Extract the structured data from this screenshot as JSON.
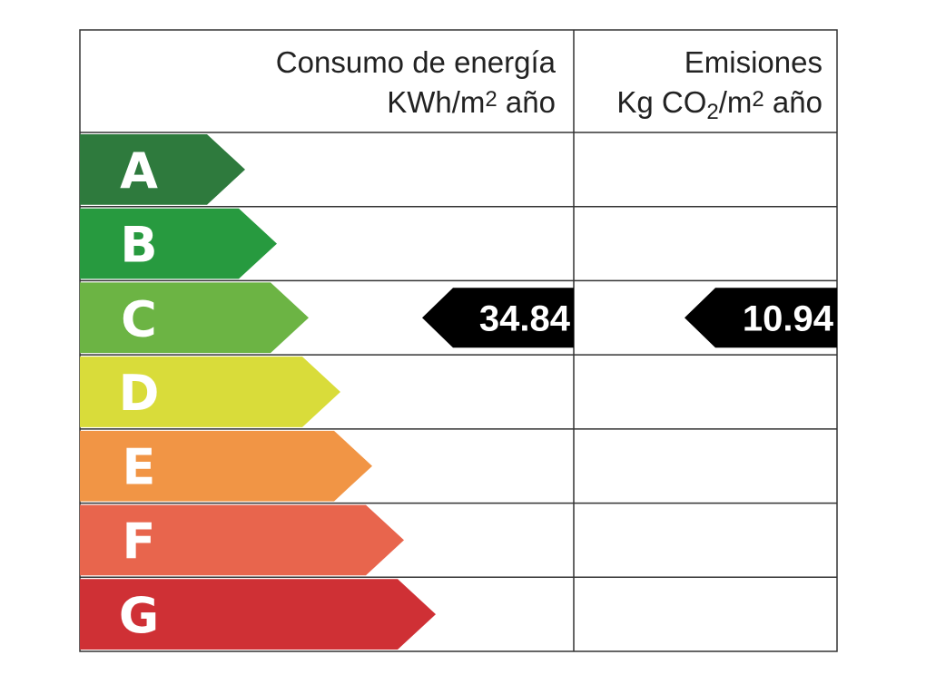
{
  "header": {
    "energy": {
      "title": "Consumo de energía",
      "unit_parts": [
        "KWh/m",
        "2",
        " año"
      ]
    },
    "emissions": {
      "title": "Emisiones",
      "unit_parts": [
        "Kg CO",
        "2",
        "/m",
        "2",
        " año"
      ]
    }
  },
  "rows": [
    {
      "letter": "A",
      "color": "#2e7a3d"
    },
    {
      "letter": "B",
      "color": "#279a3f"
    },
    {
      "letter": "C",
      "color": "#6cb444",
      "energy": 34.84,
      "emissions": 10.94
    },
    {
      "letter": "D",
      "color": "#d9dc3a"
    },
    {
      "letter": "E",
      "color": "#f19545"
    },
    {
      "letter": "F",
      "color": "#e8654d"
    },
    {
      "letter": "G",
      "color": "#cf3035"
    }
  ]
}
